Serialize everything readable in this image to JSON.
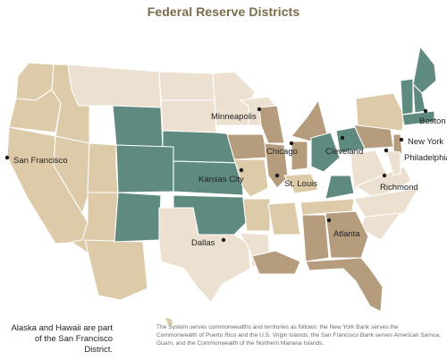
{
  "title": "Federal Reserve Districts",
  "colors": {
    "light": "#ece0d0",
    "medium": "#dccaa8",
    "dark": "#b59c7d",
    "teal": "#5f8a80"
  },
  "districts": [
    {
      "key": "boston",
      "name": "Boston"
    },
    {
      "key": "new_york",
      "name": "New York"
    },
    {
      "key": "philadelphia",
      "name": "Philadelphia"
    },
    {
      "key": "cleveland",
      "name": "Cleveland"
    },
    {
      "key": "richmond",
      "name": "Richmond"
    },
    {
      "key": "atlanta",
      "name": "Atlanta"
    },
    {
      "key": "chicago",
      "name": "Chicago"
    },
    {
      "key": "st_louis",
      "name": "St. Louis"
    },
    {
      "key": "minneapolis",
      "name": "Minneapolis"
    },
    {
      "key": "kansas_city",
      "name": "Kansas City"
    },
    {
      "key": "dallas",
      "name": "Dallas"
    },
    {
      "key": "san_francisco",
      "name": "San Francisco"
    }
  ],
  "notes": {
    "alaska_hawaii": "Alaska and Hawaii are part of the San Francisco District.",
    "territories": "The System serves commonwealths and territories as follows: the New York Bank serves the Commonwealth of Puerto Rico and the U.S. Virgin  Islands; the San Francisco Bank serves American Samoa, Guam, and the Commonwealth of the Northern Mariana Islands."
  }
}
